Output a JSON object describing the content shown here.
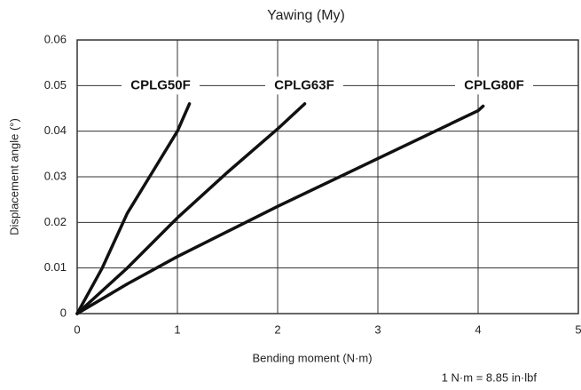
{
  "chart_data": {
    "type": "line",
    "title": "Yawing (My)",
    "x_label": "Bending moment (N·m)",
    "y_label": "Displacement angle (°)",
    "note": "1 N·m = 8.85 in·lbf",
    "xlim": [
      0,
      5
    ],
    "xticks": [
      0,
      1,
      2,
      3,
      4,
      5
    ],
    "ylim": [
      0,
      0.06
    ],
    "yticks": [
      0,
      0.01,
      0.02,
      0.03,
      0.04,
      0.05,
      0.06
    ],
    "grid": true,
    "series": [
      {
        "name": "CPLG50F",
        "color": "#111111",
        "x": [
          0,
          0.25,
          0.5,
          0.75,
          1.0,
          1.12
        ],
        "values": [
          0,
          0.01,
          0.022,
          0.031,
          0.04,
          0.046
        ]
      },
      {
        "name": "CPLG63F",
        "color": "#111111",
        "x": [
          0,
          0.5,
          1,
          1.5,
          2,
          2.27
        ],
        "values": [
          0,
          0.01,
          0.021,
          0.031,
          0.0405,
          0.046
        ]
      },
      {
        "name": "CPLG80F",
        "color": "#111111",
        "x": [
          0,
          0.5,
          1,
          2,
          3,
          4,
          4.05
        ],
        "values": [
          0,
          0.0065,
          0.0125,
          0.0235,
          0.034,
          0.0445,
          0.0455
        ]
      }
    ]
  }
}
